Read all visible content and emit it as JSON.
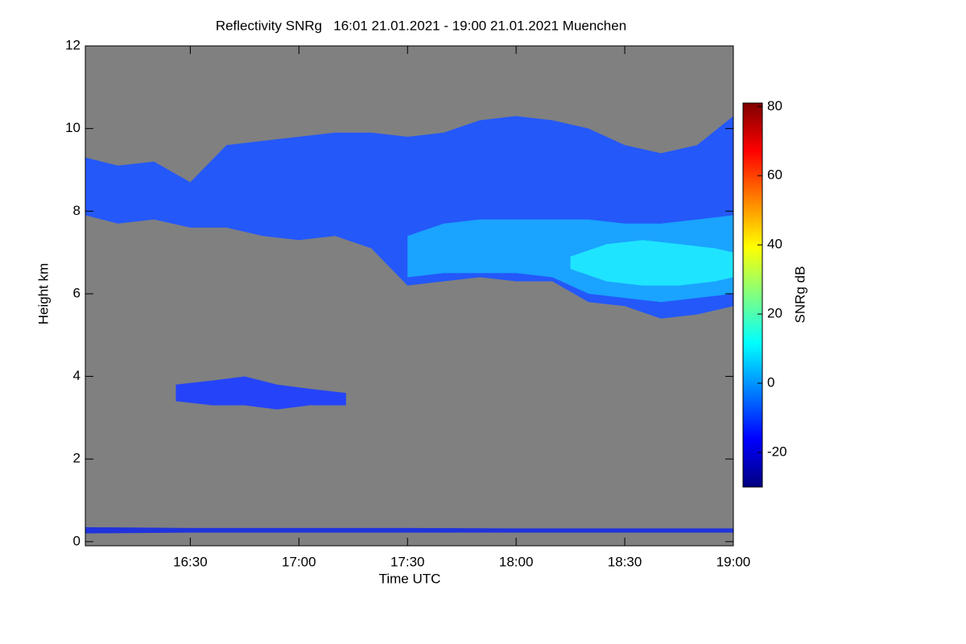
{
  "chart_data": {
    "type": "heatmap",
    "title": "Reflectivity SNRg   16:01 21.01.2021 - 19:00 21.01.2021 Muenchen",
    "x_label": "Time UTC",
    "y_label": "Height km",
    "xlim": [
      16.0167,
      19.0
    ],
    "xticks": [
      {
        "value": 16.5,
        "label": "16:30"
      },
      {
        "value": 17.0,
        "label": "17:00"
      },
      {
        "value": 17.5,
        "label": "17:30"
      },
      {
        "value": 18.0,
        "label": "18:00"
      },
      {
        "value": 18.5,
        "label": "18:30"
      },
      {
        "value": 19.0,
        "label": "19:00"
      }
    ],
    "ylim": [
      -0.1,
      12
    ],
    "yticks": [
      0,
      2,
      4,
      6,
      8,
      10,
      12
    ],
    "background": "#808080",
    "layers": [
      {
        "color": "#1f55ff",
        "x": [
          16.0167,
          16.1667,
          16.3333,
          16.5,
          16.6667,
          16.8333,
          17.0,
          17.1667,
          17.3333,
          17.5,
          17.6667,
          17.8333,
          18.0,
          18.1667,
          18.3333,
          18.5,
          18.6667,
          18.8333,
          19.0
        ],
        "top": [
          9.3,
          9.1,
          9.2,
          8.7,
          9.6,
          9.7,
          9.8,
          9.9,
          9.9,
          9.8,
          9.9,
          10.2,
          10.3,
          10.2,
          10.0,
          9.6,
          9.4,
          9.6,
          10.3
        ],
        "base": [
          7.9,
          7.7,
          7.8,
          7.6,
          7.6,
          7.4,
          7.3,
          7.4,
          7.1,
          6.2,
          6.3,
          6.4,
          6.3,
          6.3,
          5.8,
          5.7,
          5.4,
          5.5,
          5.7
        ]
      },
      {
        "color": "#1aa8ff",
        "x": [
          17.5,
          17.6667,
          17.8333,
          18.0,
          18.1667,
          18.3333,
          18.5,
          18.6667,
          18.8333,
          19.0
        ],
        "top": [
          7.4,
          7.7,
          7.8,
          7.8,
          7.8,
          7.8,
          7.7,
          7.7,
          7.8,
          7.9
        ],
        "base": [
          6.4,
          6.5,
          6.5,
          6.5,
          6.4,
          6.0,
          5.9,
          5.8,
          5.9,
          6.0
        ]
      },
      {
        "color": "#20e8ff",
        "x": [
          18.25,
          18.4167,
          18.5833,
          18.75,
          18.9167,
          19.0
        ],
        "top": [
          6.9,
          7.2,
          7.3,
          7.2,
          7.1,
          7.0
        ],
        "base": [
          6.6,
          6.3,
          6.2,
          6.2,
          6.3,
          6.4
        ]
      },
      {
        "color": "#2040ff",
        "x": [
          16.4333,
          16.6,
          16.75,
          16.9,
          17.05,
          17.2167
        ],
        "top": [
          3.8,
          3.9,
          4.0,
          3.8,
          3.7,
          3.6
        ],
        "base": [
          3.4,
          3.3,
          3.3,
          3.2,
          3.3,
          3.3
        ]
      },
      {
        "color": "#1a2ee0",
        "x": [
          16.0167,
          16.5,
          17.0,
          17.5,
          18.0,
          18.5,
          19.0
        ],
        "top": [
          0.35,
          0.33,
          0.33,
          0.33,
          0.32,
          0.32,
          0.32
        ],
        "base": [
          0.2,
          0.22,
          0.22,
          0.22,
          0.22,
          0.22,
          0.22
        ]
      }
    ],
    "colorbar": {
      "label": "SNRg dB",
      "lim": [
        -30,
        81
      ],
      "ticks": [
        -20,
        0,
        20,
        40,
        60,
        80
      ],
      "colors": [
        "#00007f",
        "#0000ff",
        "#0080ff",
        "#00ffff",
        "#80ff80",
        "#ffff00",
        "#ff8000",
        "#ff0000",
        "#7f0000"
      ]
    }
  }
}
